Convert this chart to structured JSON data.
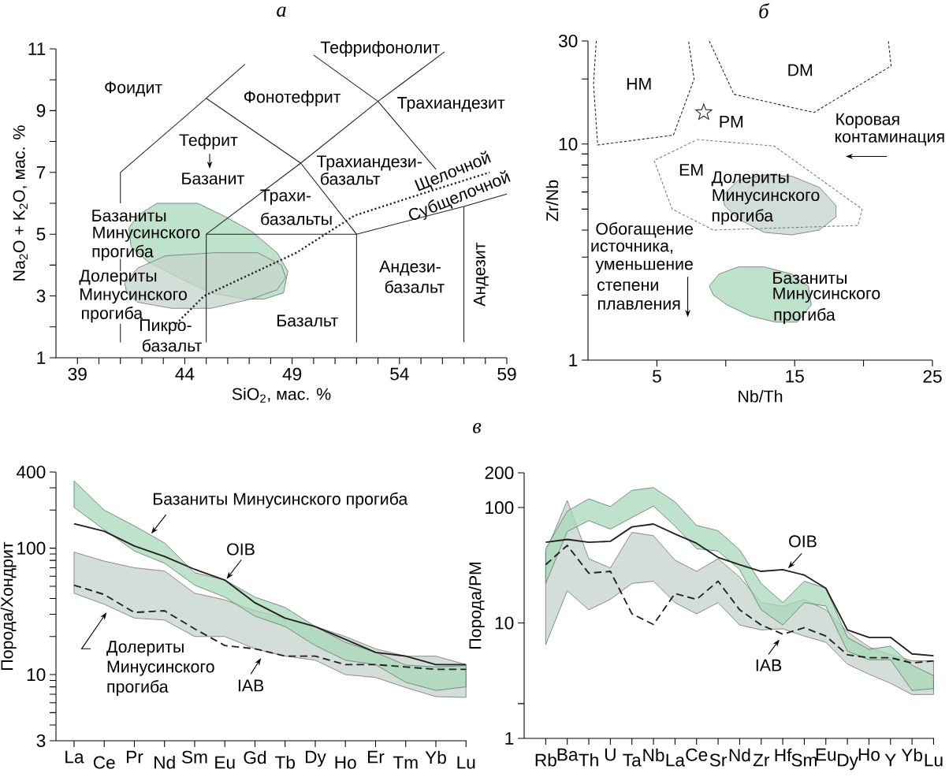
{
  "chart_data": [
    {
      "type": "line",
      "title": "а",
      "xlabel": "SiO$_{2}$, мас. %",
      "ylabel": "Na$_{2}$O + K$_{2}$O, мас. %",
      "xlim": [
        38,
        59
      ],
      "ylim": [
        1,
        11
      ],
      "xticks": [
        39,
        {
          "value": 40,
          "label": null
        },
        {
          "value": 41,
          "label": null
        },
        {
          "value": 42,
          "label": null
        },
        {
          "value": 43,
          "label": null
        },
        44,
        {
          "value": 45,
          "label": null
        },
        {
          "value": 46,
          "label": null
        },
        {
          "value": 47,
          "label": null
        },
        {
          "value": 48,
          "label": null
        },
        49,
        {
          "value": 50,
          "label": null
        },
        {
          "value": 51,
          "label": null
        },
        {
          "value": 52,
          "label": null
        },
        {
          "value": 53,
          "label": null
        },
        54,
        {
          "value": 55,
          "label": null
        },
        {
          "value": 56,
          "label": null
        },
        {
          "value": 57,
          "label": null
        },
        {
          "value": 58,
          "label": null
        },
        59
      ],
      "yticks": [
        1,
        {
          "value": 2,
          "label": null
        },
        3,
        {
          "value": 4,
          "label": null
        },
        5,
        {
          "value": 6,
          "label": null
        },
        7,
        {
          "value": 8,
          "label": null
        },
        9,
        {
          "value": 10,
          "label": null
        },
        11
      ],
      "series": [
        {
          "type": "area",
          "color": "#a8d8b9",
          "x": [
            41.4,
            41.8,
            42.7,
            43.5,
            44.6,
            45.8,
            47.1,
            48.3,
            48.8,
            48.6,
            47.7,
            46.8,
            45.2,
            43.7,
            42.3,
            41.5
          ],
          "values": [
            5.2,
            5.6,
            6.0,
            6.0,
            6.0,
            5.6,
            5.1,
            4.4,
            3.8,
            3.1,
            2.9,
            2.9,
            3.1,
            3.6,
            4.1,
            4.6
          ]
        },
        {
          "type": "area",
          "color": "#c6d3cb",
          "x": [
            41.2,
            41.8,
            43.1,
            45.4,
            47.4,
            48.5,
            48.7,
            48.3,
            47.1,
            45.2,
            43.4,
            41.8,
            41.3
          ],
          "values": [
            3.4,
            3.9,
            4.3,
            4.4,
            4.4,
            4.0,
            3.6,
            3.2,
            2.9,
            2.6,
            2.6,
            2.8,
            3.1
          ]
        },
        {
          "type": "line",
          "color": "#231f20",
          "x": [
            41,
            41,
            45,
            46.8
          ],
          "values": [
            6.0,
            7,
            9.4,
            10.5
          ]
        },
        {
          "type": "line",
          "color": "#231f20",
          "x": [
            41,
            41
          ],
          "values": [
            4.2,
            3.8
          ]
        },
        {
          "type": "line",
          "color": "#231f20",
          "x": [
            41,
            41
          ],
          "values": [
            2.1,
            1.5
          ]
        },
        {
          "type": "line",
          "color": "#231f20",
          "x": [
            45,
            49.4,
            52,
            52
          ],
          "values": [
            9.4,
            7.3,
            5,
            1.5
          ]
        },
        {
          "type": "line",
          "color": "#231f20",
          "x": [
            45,
            45,
            49.4,
            53,
            56.1
          ],
          "values": [
            1.5,
            5,
            7.3,
            9.3,
            10.9
          ]
        },
        {
          "type": "line",
          "color": "#231f20",
          "x": [
            45,
            52,
            57,
            59
          ],
          "values": [
            5,
            5,
            5.9,
            6.3
          ]
        },
        {
          "type": "line",
          "color": "#231f20",
          "x": [
            57,
            57
          ],
          "values": [
            5.9,
            1.5
          ]
        },
        {
          "type": "line",
          "color": "#231f20",
          "x": [
            50,
            53,
            55.7
          ],
          "values": [
            10.8,
            9.3,
            7.1
          ]
        },
        {
          "type": "line",
          "color": "#231f20",
          "line_style": "dotted",
          "x": [
            43.6,
            44.9,
            49.2,
            51.9,
            55,
            58.2
          ],
          "values": [
            2.1,
            3.0,
            4.4,
            5.6,
            6.3,
            7.0
          ]
        }
      ],
      "annotations": [
        "Фоидит",
        "Фонотефрит",
        "Тефрифонолит",
        "Трахиандезит",
        "Тефрит",
        "Базанит",
        "Трахиандези-",
        "базальт",
        "Трахи-",
        "базальты",
        "Щелочной",
        "Субщелочной",
        "Базаниты",
        "Минусинского",
        "прогиба",
        "Долериты",
        "Минусинского",
        "прогиба",
        "Пикро-",
        "базальт",
        "Базальт",
        "Андези-",
        "базальт",
        "Андезит"
      ]
    },
    {
      "type": "line",
      "title": "б",
      "xlabel": "Nb/Th",
      "ylabel": "Zr/Nb",
      "log": "y",
      "xlim": [
        0,
        25
      ],
      "ylim": [
        1,
        30
      ],
      "xticks": [
        5,
        {
          "value": 10,
          "label": null
        },
        15,
        {
          "value": 20,
          "label": null
        },
        25
      ],
      "yticks": [
        1,
        {
          "value": 2,
          "label": null
        },
        {
          "value": 3,
          "label": null
        },
        {
          "value": 4,
          "label": null
        },
        {
          "value": 5,
          "label": null
        },
        {
          "value": 6,
          "label": null
        },
        {
          "value": 7,
          "label": null
        },
        {
          "value": 8,
          "label": null
        },
        {
          "value": 9,
          "label": null
        },
        10,
        {
          "value": 20,
          "label": null
        },
        30
      ],
      "series": [
        {
          "type": "area",
          "color": "#c6d3cb",
          "x": [
            9.8,
            10.9,
            12.8,
            14.8,
            16.8,
            18.0,
            18.0,
            16.8,
            14.8,
            12.8,
            10.9,
            9.9
          ],
          "values": [
            5.8,
            6.8,
            7.2,
            7.1,
            6.3,
            5.2,
            4.6,
            4.0,
            3.8,
            3.9,
            4.5,
            5.2
          ]
        },
        {
          "type": "area",
          "color": "#a8d8b9",
          "x": [
            8.8,
            9.5,
            10.9,
            12.8,
            14.8,
            16.0,
            16.2,
            15.2,
            13.6,
            11.8,
            10.1,
            9.1
          ],
          "values": [
            2.2,
            2.5,
            2.7,
            2.7,
            2.5,
            2.2,
            1.8,
            1.5,
            1.5,
            1.6,
            1.8,
            2.0
          ]
        },
        {
          "type": "line",
          "color": "#231f20",
          "line_style": "dashed",
          "x": [
            0.6,
            0.4,
            0.7,
            6.2,
            7.7,
            7.3
          ],
          "values": [
            30,
            19,
            9.9,
            11,
            20,
            30
          ]
        },
        {
          "type": "line",
          "color": "#231f20",
          "line_style": "dashed",
          "x": [
            8.8,
            10.6,
            16.4,
            22.0,
            21.8
          ],
          "values": [
            30,
            17,
            14,
            23,
            30
          ]
        },
        {
          "type": "line",
          "color": "#7a7a7a",
          "line_style": "dashed",
          "x": [
            7.9,
            13.5,
            19.9,
            19.6,
            9.1,
            6.1,
            4.8,
            7.8
          ],
          "values": [
            10.5,
            9.8,
            5.0,
            4.2,
            4.0,
            5.0,
            8.4,
            10.4
          ]
        },
        {
          "type": "scatter",
          "name": "PM",
          "color": "#231f20",
          "marker": "star",
          "x": [
            8.4
          ],
          "values": [
            14
          ]
        }
      ],
      "annotations": [
        "HM",
        "DM",
        "EM",
        "Долериты",
        "Минусинского",
        "прогиба",
        "Коровая",
        "контаминация",
        "Обогащение",
        "источника,",
        "уменьшение",
        "степени",
        "плавления",
        "Базаниты",
        "Минусинского",
        "прогиба"
      ]
    },
    {
      "type": "line",
      "title": "в",
      "ylabel": "Порода/Хондрит",
      "log": "y",
      "ylim": [
        3,
        400
      ],
      "yticks": [
        3,
        {
          "value": 4,
          "label": null
        },
        {
          "value": 5,
          "label": null
        },
        {
          "value": 6,
          "label": null
        },
        {
          "value": 7,
          "label": null
        },
        {
          "value": 8,
          "label": null
        },
        {
          "value": 9,
          "label": null
        },
        10,
        {
          "value": 20,
          "label": null
        },
        {
          "value": 30,
          "label": null
        },
        {
          "value": 40,
          "label": null
        },
        {
          "value": 50,
          "label": null
        },
        {
          "value": 60,
          "label": null
        },
        {
          "value": 70,
          "label": null
        },
        {
          "value": 80,
          "label": null
        },
        {
          "value": 90,
          "label": null
        },
        100,
        {
          "value": 200,
          "label": null
        },
        {
          "value": 300,
          "label": null
        },
        400
      ],
      "categories": [
        "La",
        "Ce",
        "Pr",
        "Nd",
        "Sm",
        "Eu",
        "Gd",
        "Tb",
        "Dy",
        "Ho",
        "Er",
        "Tm",
        "Yb",
        "Lu"
      ],
      "series": [
        {
          "color": "#c6d3cb",
          "values": [
            null,
            null,
            null,
            null,
            null,
            null,
            null,
            null,
            null,
            null,
            null,
            null,
            null,
            null
          ],
          "upper": [
            93,
            79,
            70,
            66,
            44,
            39,
            32,
            28,
            24,
            20,
            16,
            14,
            14,
            12
          ],
          "lower": [
            44,
            36,
            28,
            27,
            20,
            20,
            16,
            14,
            13,
            10,
            9.5,
            7.9,
            6.7,
            6.6
          ]
        },
        {
          "color": "#a8d8b9",
          "values": [
            null,
            null,
            null,
            null,
            null,
            null,
            null,
            null,
            null,
            null,
            null,
            null,
            null,
            null
          ],
          "upper": [
            340,
            200,
            150,
            110,
            64,
            56,
            41,
            34,
            24,
            18,
            15,
            11.9,
            11.5,
            11.8
          ],
          "lower": [
            210,
            140,
            95,
            76,
            51,
            41,
            29,
            24,
            17,
            13,
            12,
            8.7,
            7.5,
            8.0
          ]
        },
        {
          "name": "OIB",
          "color": "#231f20",
          "values": [
            156,
            136,
            104,
            86,
            68,
            56,
            37,
            28,
            24,
            19,
            15,
            14,
            12,
            12
          ]
        },
        {
          "name": "IAB",
          "color": "#231f20",
          "line_style": "dashed",
          "values": [
            51,
            43,
            31,
            32,
            23,
            17,
            16,
            14,
            14,
            12,
            12,
            11.5,
            11,
            11
          ]
        }
      ],
      "annotations": [
        "Базаниты Минусинского прогиба",
        "Долериты Минусинского прогиба"
      ]
    },
    {
      "type": "line",
      "ylabel": "Порода/РМ",
      "log": "y",
      "ylim": [
        1,
        200
      ],
      "yticks": [
        1,
        {
          "value": 2,
          "label": null
        },
        10,
        100,
        200
      ],
      "categories": [
        "Rb",
        "Ba",
        "Th",
        "U",
        "Ta",
        "Nb",
        "La",
        "Ce",
        "Sr",
        "Nd",
        "Zr",
        "Hf",
        "Sm",
        "Eu",
        "Dy",
        "Ho",
        "Y",
        "Yb",
        "Lu"
      ],
      "series": [
        {
          "color": "#c6d3cb",
          "values": [
            null,
            null,
            null,
            null,
            null,
            null,
            null,
            null,
            null,
            null,
            null,
            null,
            null,
            null,
            null,
            null,
            null,
            null,
            null
          ],
          "upper": [
            41,
            115,
            36,
            30,
            61,
            57,
            35,
            28,
            36,
            25,
            15,
            14,
            16,
            13,
            8.4,
            6.2,
            5.3,
            4.7,
            4.7
          ],
          "lower": [
            6.5,
            19,
            13,
            16,
            22,
            23,
            15,
            12,
            15,
            9.6,
            8.7,
            8.9,
            7.7,
            6.8,
            4.4,
            3.6,
            3.0,
            2.4,
            2.4
          ]
        },
        {
          "color": "#a8d8b9",
          "values": [
            null,
            null,
            null,
            null,
            null,
            null,
            null,
            null,
            null,
            null,
            null,
            null,
            null,
            null,
            null,
            null,
            null,
            null,
            null
          ],
          "upper": [
            44,
            93,
            119,
            102,
            141,
            149,
            112,
            70,
            63,
            43,
            22,
            15,
            23,
            20,
            7.5,
            5.9,
            6.3,
            4.3,
            3.5
          ],
          "lower": [
            22,
            62,
            77,
            65,
            82,
            103,
            69,
            44,
            42,
            29,
            13,
            9.6,
            15,
            14,
            5.7,
            4.8,
            4.8,
            2.6,
            2.7
          ]
        },
        {
          "name": "OIB",
          "color": "#231f20",
          "values": [
            50,
            53,
            50,
            51,
            68,
            72,
            59,
            49,
            37,
            32,
            28,
            29,
            26,
            20,
            8.7,
            7.5,
            7.5,
            5.4,
            5.2
          ]
        },
        {
          "name": "IAB",
          "color": "#231f20",
          "line_style": "dashed",
          "values": [
            32,
            47,
            27,
            28,
            12,
            9.7,
            18,
            16,
            23,
            13,
            9.6,
            8.0,
            9.1,
            7.7,
            5.3,
            5.0,
            5.0,
            4.5,
            4.7
          ]
        }
      ]
    }
  ]
}
